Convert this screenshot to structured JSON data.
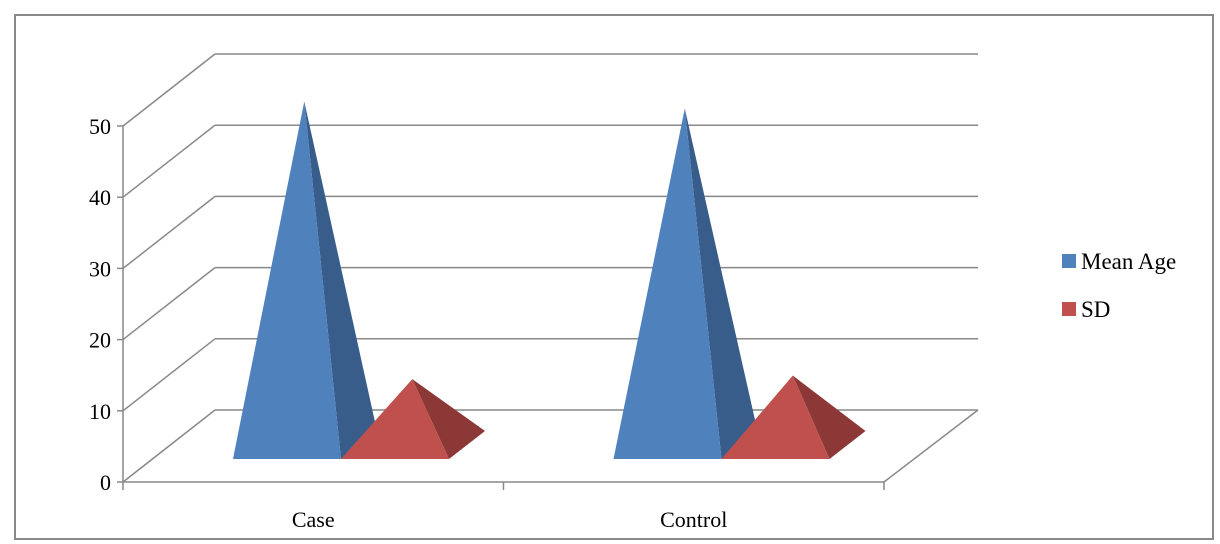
{
  "chart_data": {
    "type": "bar",
    "bar_shape": "3d-pyramid",
    "categories": [
      "Case",
      "Control"
    ],
    "series": [
      {
        "name": "Mean Age",
        "values": [
          50.5,
          49.5
        ],
        "color": "#4F81BD",
        "side_color": "#385D8A"
      },
      {
        "name": "SD",
        "values": [
          11.5,
          12.0
        ],
        "color": "#C0504D",
        "side_color": "#8C3836"
      }
    ],
    "ylim": [
      0,
      50
    ],
    "yticks": [
      "0",
      "10",
      "20",
      "30",
      "40",
      "50"
    ],
    "grid": true,
    "legend_position": "right",
    "gridline_color": "#898989"
  }
}
